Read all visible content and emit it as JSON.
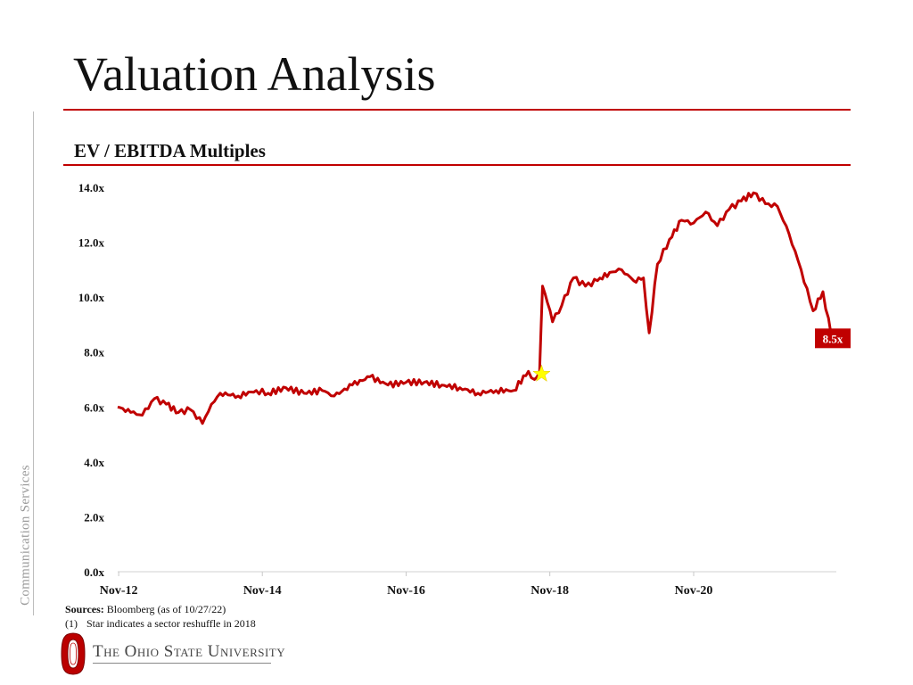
{
  "header": {
    "title": "Valuation Analysis",
    "subtitle": "EV / EBITDA Multiples"
  },
  "sidebar": {
    "label": "Communication Services"
  },
  "footer": {
    "sources_label": "Sources:",
    "sources_text": "Bloomberg (as of 10/27/22)",
    "footnote_num": "(1)",
    "footnote_text": "Star indicates a sector reshuffle in 2018",
    "logo_text": "The Ohio State University"
  },
  "colors": {
    "line": "#c00000",
    "accent": "#c00000",
    "star": "#ffff00",
    "label_bg": "#c00000"
  },
  "chart_data": {
    "type": "line",
    "title": "EV / EBITDA Multiples",
    "xlabel": "",
    "ylabel": "",
    "ylim": [
      0,
      14
    ],
    "yticks": [
      0,
      2,
      4,
      6,
      8,
      10,
      12,
      14
    ],
    "ytick_labels": [
      "0.0x",
      "2.0x",
      "4.0x",
      "6.0x",
      "8.0x",
      "10.0x",
      "12.0x",
      "14.0x"
    ],
    "xlim": [
      "2012-10-27",
      "2022-10-27"
    ],
    "xticks": [
      "2012-11-01",
      "2014-11-01",
      "2016-11-01",
      "2018-11-01",
      "2020-11-01"
    ],
    "xtick_labels": [
      "Nov-12",
      "Nov-14",
      "Nov-16",
      "Nov-18",
      "Nov-20"
    ],
    "grid": false,
    "legend": "none",
    "series": [
      {
        "x": [
          "2012-10-27",
          "2013-01-01",
          "2013-03-01",
          "2013-05-01",
          "2013-07-01",
          "2013-09-01",
          "2013-11-01",
          "2014-01-01",
          "2014-02-15",
          "2014-04-01",
          "2014-07-01",
          "2014-10-01",
          "2014-12-01",
          "2015-03-01",
          "2015-06-01",
          "2015-09-01",
          "2015-11-01",
          "2016-02-01",
          "2016-05-01",
          "2016-08-01",
          "2016-11-01",
          "2017-02-01",
          "2017-05-01",
          "2017-08-01",
          "2017-11-01",
          "2018-02-01",
          "2018-05-01",
          "2018-07-15",
          "2018-08-15",
          "2018-09-10",
          "2018-09-25",
          "2018-10-20",
          "2018-11-15",
          "2019-01-01",
          "2019-03-01",
          "2019-05-01",
          "2019-07-01",
          "2019-09-01",
          "2019-11-01",
          "2020-01-01",
          "2020-02-20",
          "2020-03-20",
          "2020-05-01",
          "2020-07-01",
          "2020-09-01",
          "2020-11-01",
          "2021-01-01",
          "2021-03-01",
          "2021-05-01",
          "2021-07-01",
          "2021-09-01",
          "2021-11-01",
          "2022-01-01",
          "2022-03-01",
          "2022-05-01",
          "2022-07-01",
          "2022-08-20",
          "2022-10-01",
          "2022-10-27"
        ],
        "values": [
          6.0,
          5.8,
          5.7,
          6.3,
          6.1,
          5.8,
          5.9,
          5.4,
          6.1,
          6.5,
          6.4,
          6.6,
          6.5,
          6.7,
          6.5,
          6.6,
          6.4,
          6.8,
          7.1,
          6.8,
          6.9,
          6.9,
          6.8,
          6.7,
          6.5,
          6.6,
          6.6,
          7.3,
          7.0,
          7.3,
          10.4,
          9.8,
          9.1,
          9.7,
          10.7,
          10.4,
          10.6,
          10.9,
          11.0,
          10.6,
          10.7,
          8.7,
          11.2,
          12.1,
          12.8,
          12.7,
          13.1,
          12.6,
          13.2,
          13.5,
          13.8,
          13.4,
          13.3,
          12.3,
          11.0,
          9.5,
          10.2,
          8.6,
          8.5
        ]
      }
    ],
    "annotations": [
      {
        "type": "star",
        "x": "2018-09-20",
        "y": 7.2
      },
      {
        "type": "end-label",
        "text": "8.5x",
        "y": 8.5
      }
    ]
  }
}
